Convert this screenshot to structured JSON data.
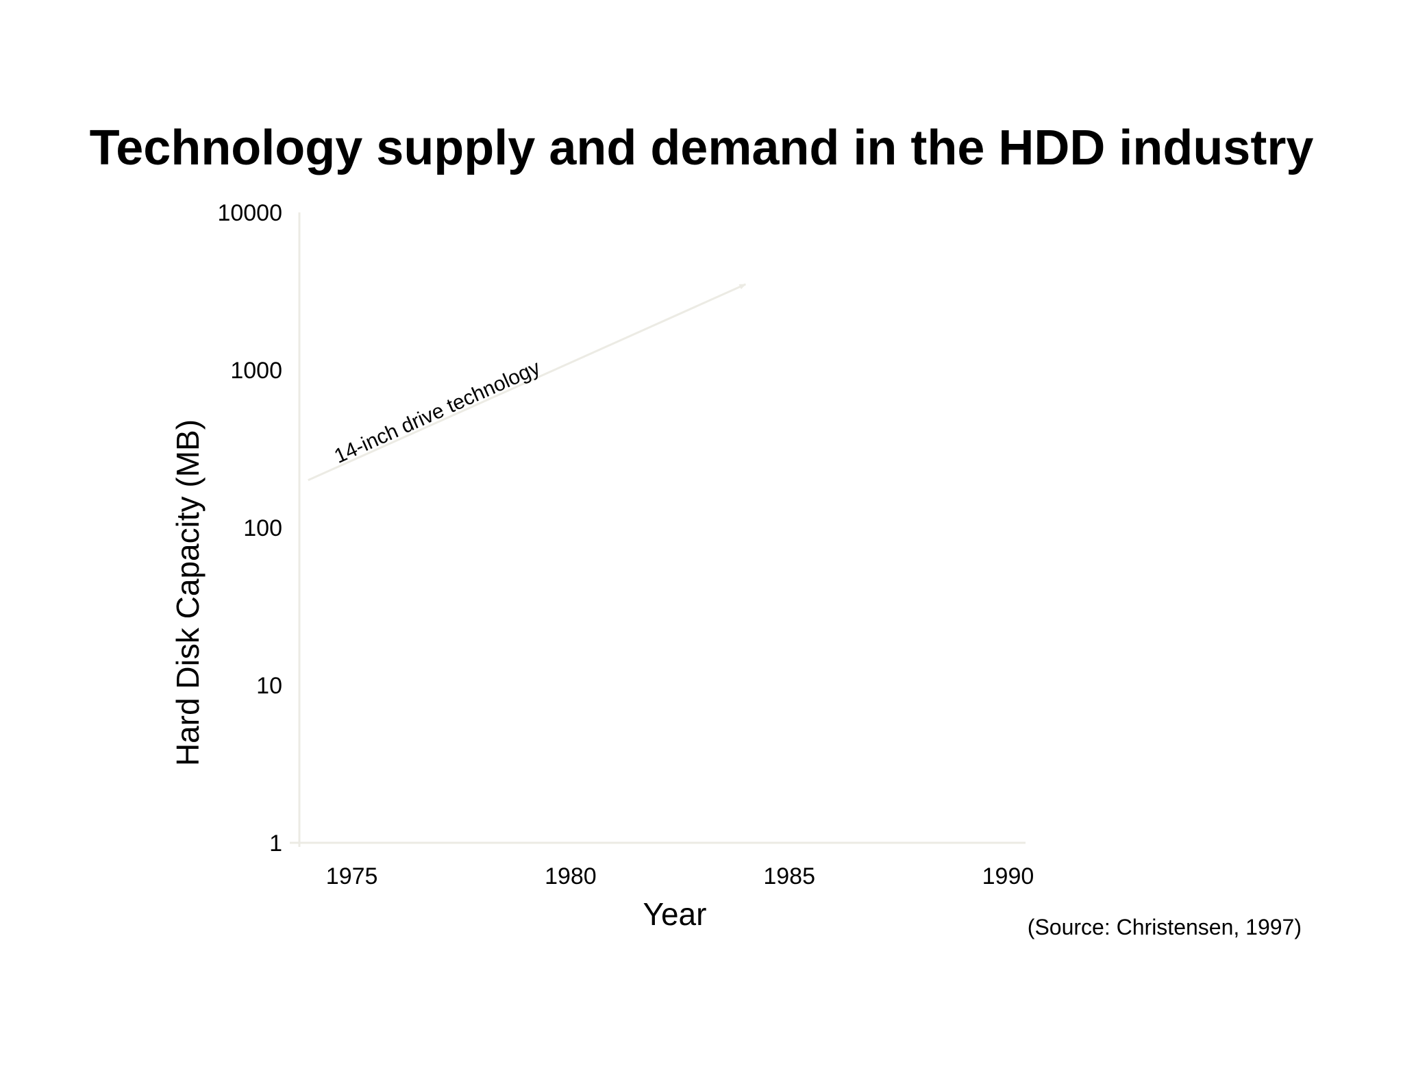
{
  "slide": {
    "title": "Technology supply and demand in the HDD industry",
    "source": "(Source: Christensen, 1997)"
  },
  "colors": {
    "axis": "#ecebe4",
    "annotation_arrow": "#ecebe4",
    "text": "#000000",
    "background": "#ffffff"
  },
  "chart_data": {
    "type": "line",
    "title": "Technology supply and demand in the HDD industry",
    "xlabel": "Year",
    "ylabel": "Hard Disk Capacity (MB)",
    "yscale": "log",
    "xlim": [
      1973.8,
      1990.4
    ],
    "ylim": [
      1,
      10000
    ],
    "x_ticks": [
      1975,
      1980,
      1985,
      1990
    ],
    "y_ticks": [
      1,
      10,
      100,
      1000,
      10000
    ],
    "grid": false,
    "legend": "none",
    "series": [],
    "annotations": [
      {
        "text": "14-inch drive technology",
        "type": "arrow",
        "from": {
          "x": 1974,
          "y": 200
        },
        "to": {
          "x": 1984,
          "y": 3500
        }
      }
    ]
  }
}
